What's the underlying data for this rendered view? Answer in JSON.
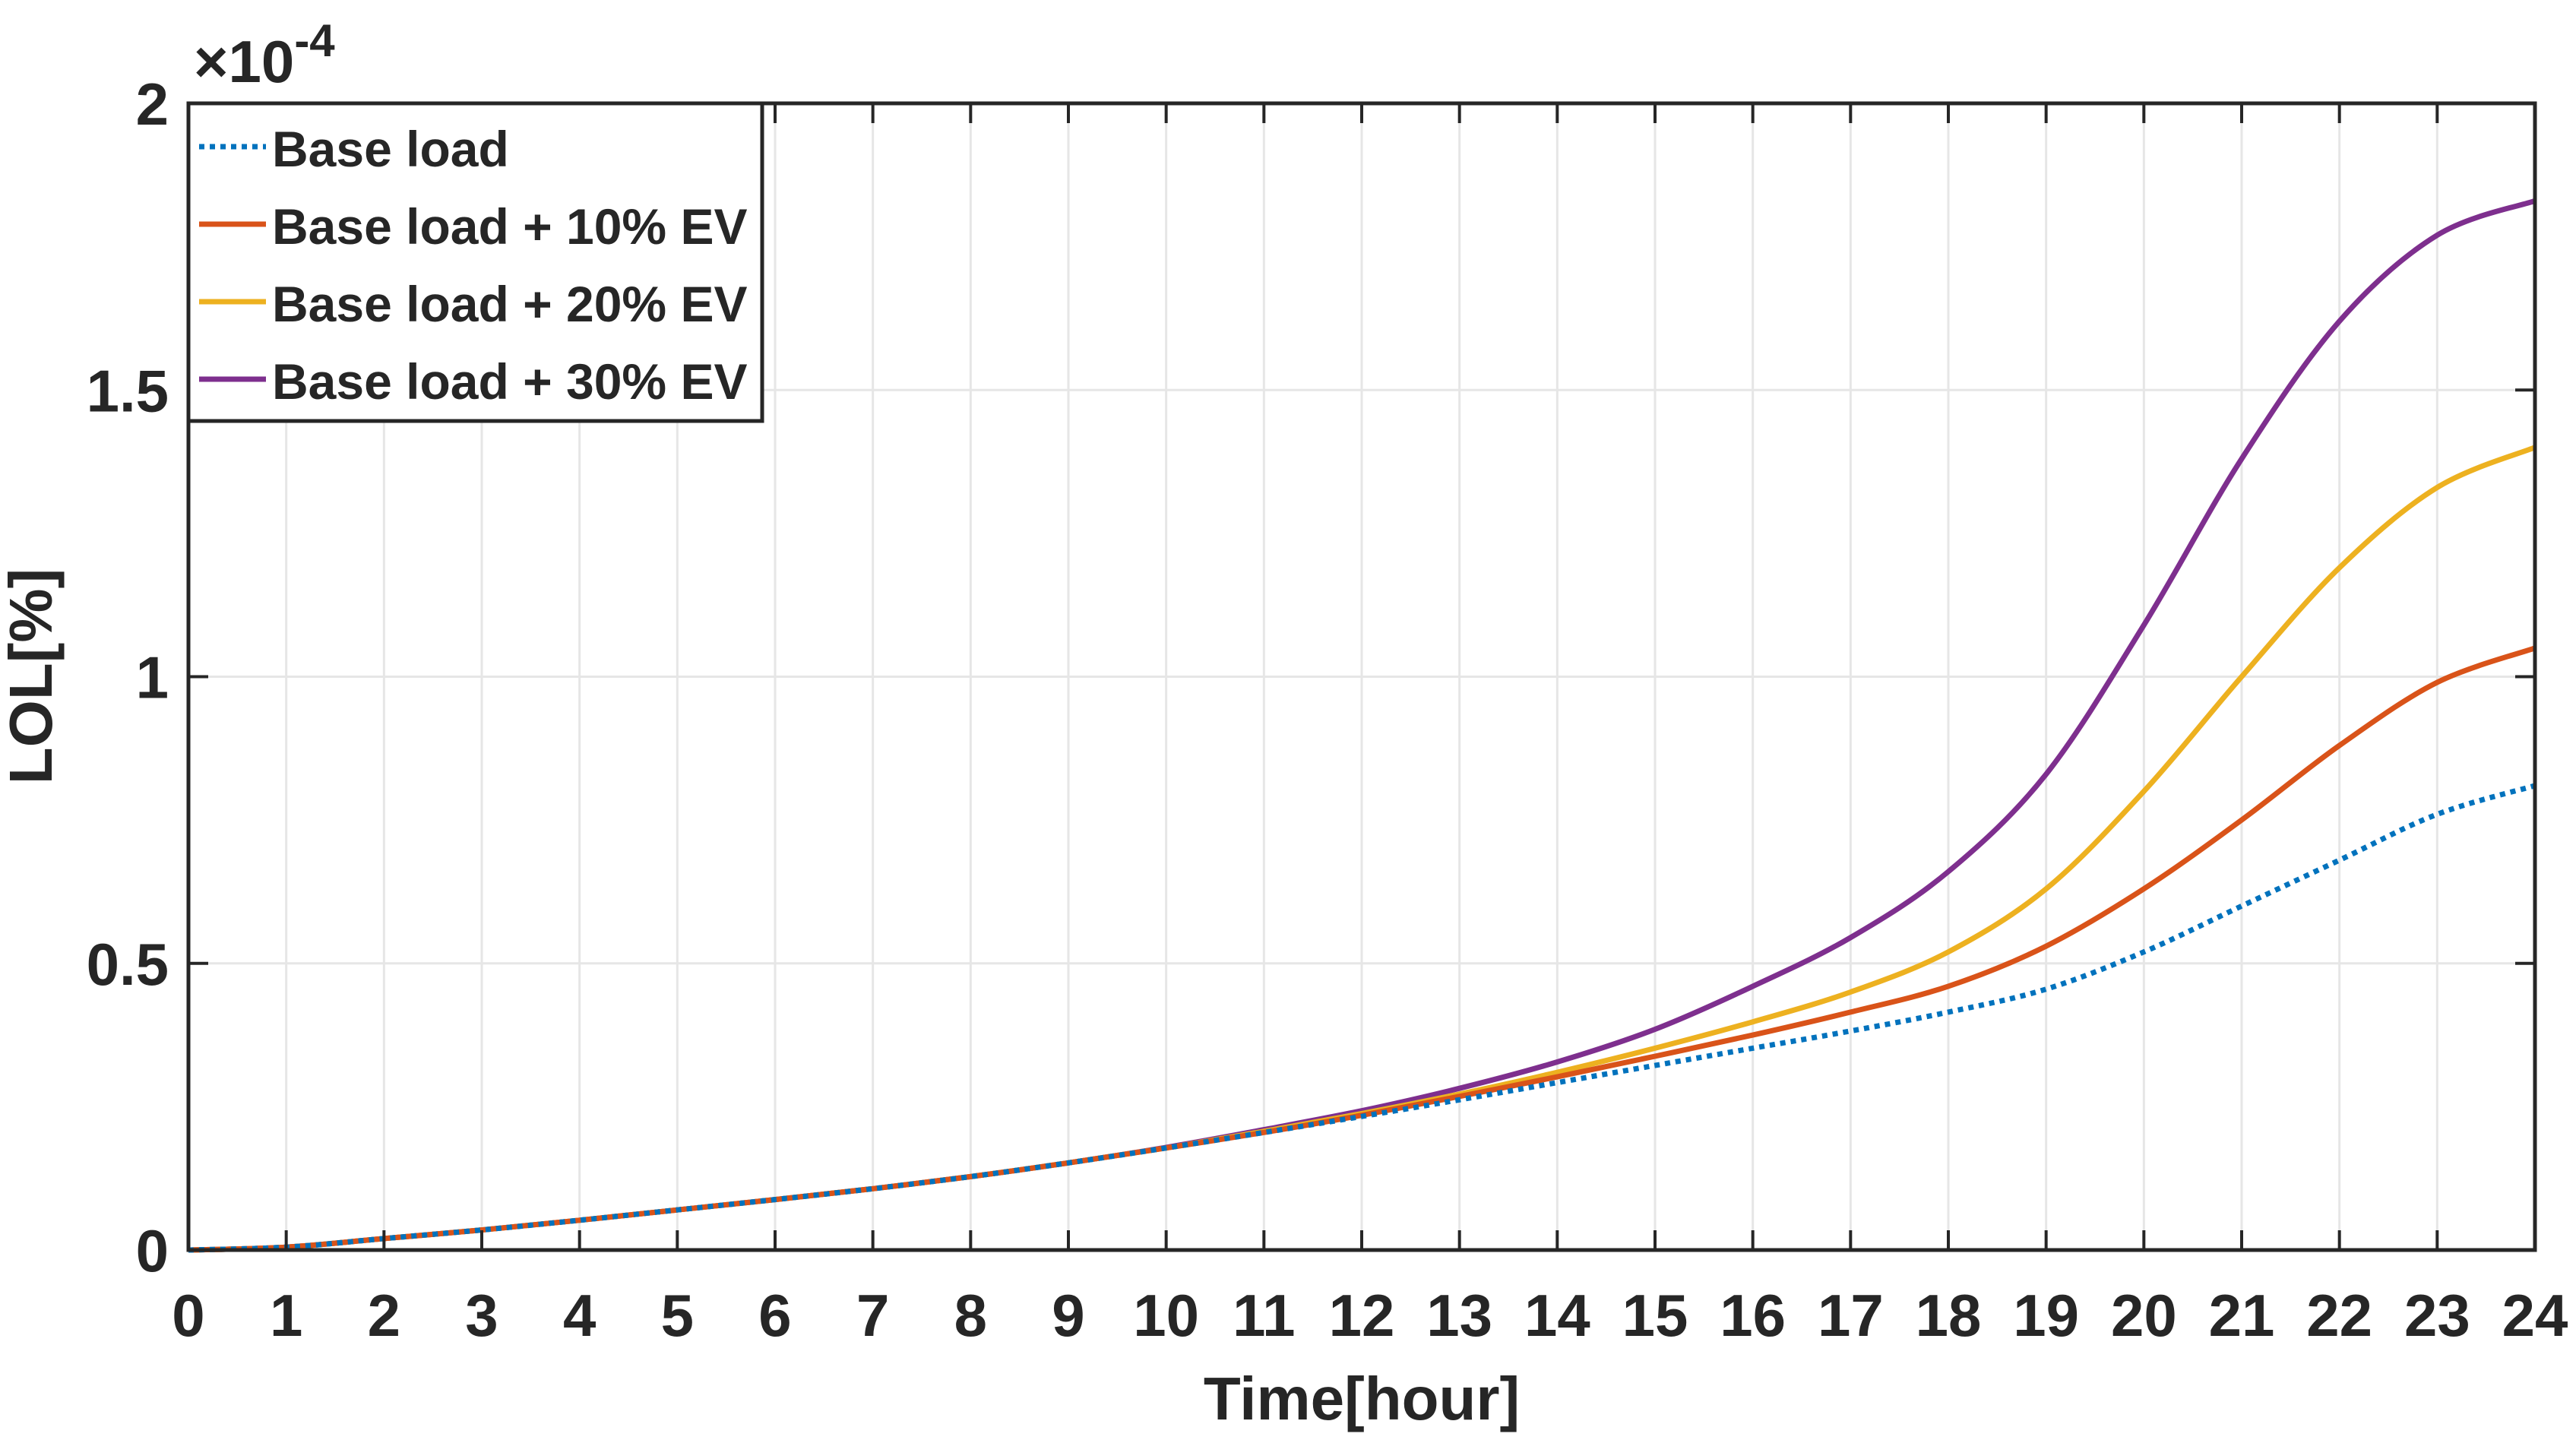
{
  "chart_data": {
    "type": "line",
    "xlabel": "Time[hour]",
    "ylabel": "LOL[%]",
    "y_exponent_label": "×10",
    "y_exponent_power": "-4",
    "xlim": [
      0,
      24
    ],
    "ylim": [
      0,
      2
    ],
    "x_ticks": [
      "0",
      "1",
      "2",
      "3",
      "4",
      "5",
      "6",
      "7",
      "8",
      "9",
      "10",
      "11",
      "12",
      "13",
      "14",
      "15",
      "16",
      "17",
      "18",
      "19",
      "20",
      "21",
      "22",
      "23",
      "24"
    ],
    "y_ticks": [
      "0",
      "0.5",
      "1",
      "1.5",
      "2"
    ],
    "y_tick_values": [
      0,
      0.5,
      1,
      1.5,
      2
    ],
    "grid": true,
    "legend_position": "top-left",
    "x": [
      0,
      1,
      2,
      3,
      4,
      5,
      6,
      7,
      8,
      9,
      10,
      11,
      12,
      13,
      14,
      15,
      16,
      17,
      18,
      19,
      20,
      21,
      22,
      23,
      24
    ],
    "series": [
      {
        "name": "Base load",
        "color": "#0072BD",
        "style": "dotted",
        "values": [
          0,
          0.005,
          0.02,
          0.035,
          0.052,
          0.07,
          0.088,
          0.107,
          0.128,
          0.152,
          0.178,
          0.205,
          0.233,
          0.262,
          0.292,
          0.322,
          0.352,
          0.382,
          0.415,
          0.455,
          0.52,
          0.6,
          0.68,
          0.76,
          0.81
        ]
      },
      {
        "name": "Base load + 10% EV",
        "color": "#D95319",
        "style": "solid",
        "values": [
          0,
          0.005,
          0.02,
          0.035,
          0.052,
          0.07,
          0.088,
          0.107,
          0.128,
          0.152,
          0.178,
          0.205,
          0.235,
          0.268,
          0.302,
          0.338,
          0.375,
          0.415,
          0.46,
          0.53,
          0.63,
          0.75,
          0.88,
          0.99,
          1.05
        ]
      },
      {
        "name": "Base load + 20% EV",
        "color": "#EDB120",
        "style": "solid",
        "values": [
          0,
          0.005,
          0.02,
          0.035,
          0.052,
          0.07,
          0.088,
          0.107,
          0.128,
          0.152,
          0.178,
          0.207,
          0.238,
          0.272,
          0.31,
          0.352,
          0.398,
          0.45,
          0.52,
          0.63,
          0.8,
          1.0,
          1.19,
          1.33,
          1.4
        ]
      },
      {
        "name": "Base load + 30% EV",
        "color": "#7E2F8E",
        "style": "solid",
        "values": [
          0,
          0.005,
          0.02,
          0.035,
          0.052,
          0.07,
          0.088,
          0.107,
          0.128,
          0.152,
          0.179,
          0.21,
          0.243,
          0.282,
          0.328,
          0.385,
          0.46,
          0.545,
          0.66,
          0.83,
          1.09,
          1.38,
          1.62,
          1.77,
          1.83
        ]
      }
    ]
  }
}
